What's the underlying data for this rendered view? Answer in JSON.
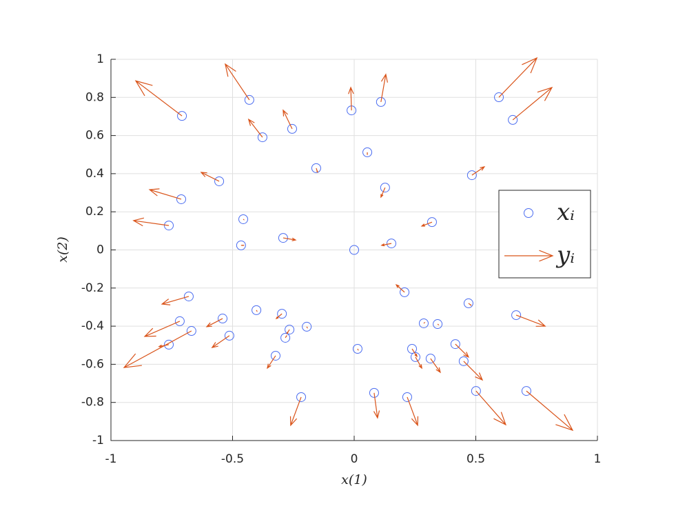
{
  "chart_data": {
    "type": "quiver",
    "xlabel": "x(1)",
    "ylabel": "x(2)",
    "xlim": [
      -1,
      1
    ],
    "ylim": [
      -1,
      1
    ],
    "xticks": [
      -1,
      -0.5,
      0,
      0.5,
      1
    ],
    "yticks": [
      -1,
      -0.8,
      -0.6,
      -0.4,
      -0.2,
      0,
      0.2,
      0.4,
      0.6,
      0.8,
      1
    ],
    "grid": true,
    "legend": "east",
    "point_name": "xᵢ",
    "point_color": "#4a6cf0",
    "arrow_name": "yᵢ",
    "arrow_color": "#d95319",
    "x": [
      -0.708,
      -0.431,
      -0.377,
      -0.255,
      -0.011,
      0.11,
      0.595,
      0.652,
      0.054,
      -0.156,
      -0.555,
      -0.711,
      -0.762,
      -0.456,
      -0.465,
      -0.292,
      0,
      0.127,
      0.484,
      0.32,
      0.153,
      0.207,
      -0.68,
      -0.717,
      -0.669,
      -0.762,
      -0.541,
      -0.513,
      -0.402,
      -0.297,
      -0.266,
      -0.283,
      -0.195,
      -0.323,
      -0.218,
      0.014,
      0.082,
      0.218,
      0.238,
      0.252,
      0.286,
      0.343,
      0.314,
      0.416,
      0.47,
      0.45,
      0.666,
      0.501,
      0.708
    ],
    "y": [
      0.703,
      0.787,
      0.591,
      0.635,
      0.732,
      0.776,
      0.801,
      0.682,
      0.512,
      0.429,
      0.36,
      0.266,
      0.128,
      0.161,
      0.024,
      0.063,
      0,
      0.327,
      0.392,
      0.146,
      0.034,
      -0.222,
      -0.244,
      -0.374,
      -0.425,
      -0.497,
      -0.36,
      -0.45,
      -0.316,
      -0.335,
      -0.418,
      -0.461,
      -0.403,
      -0.555,
      -0.772,
      -0.519,
      -0.75,
      -0.772,
      -0.519,
      -0.562,
      -0.385,
      -0.389,
      -0.57,
      -0.494,
      -0.28,
      -0.584,
      -0.342,
      -0.74,
      -0.74
    ],
    "u": [
      -0.19,
      -0.099,
      -0.057,
      -0.037,
      -0.003,
      0.02,
      0.156,
      0.161,
      0,
      0.005,
      -0.074,
      -0.13,
      -0.145,
      0.002,
      0.01,
      0.051,
      0,
      -0.017,
      0.051,
      -0.042,
      -0.04,
      -0.034,
      -0.11,
      -0.144,
      -0.277,
      -0.04,
      -0.065,
      -0.071,
      0.002,
      -0.023,
      -0.01,
      0.005,
      0.002,
      -0.034,
      -0.043,
      0.002,
      0.014,
      0.043,
      0.02,
      0.026,
      0.003,
      0.003,
      0.04,
      0.054,
      0.01,
      0.077,
      0.119,
      0.122,
      0.19
    ],
    "v": [
      0.184,
      0.188,
      0.094,
      0.098,
      0.12,
      0.145,
      0.206,
      0.17,
      -0.01,
      -0.02,
      0.047,
      0.05,
      0.026,
      -0.002,
      0,
      -0.011,
      0,
      -0.05,
      0.044,
      -0.021,
      -0.01,
      0.039,
      -0.04,
      -0.08,
      -0.192,
      -0.01,
      -0.043,
      -0.062,
      -0.005,
      -0.025,
      -0.02,
      0.01,
      -0.005,
      -0.065,
      -0.148,
      -0.005,
      -0.131,
      -0.148,
      -0.04,
      -0.058,
      0.003,
      -0.003,
      -0.072,
      -0.068,
      -0.01,
      -0.098,
      -0.058,
      -0.177,
      -0.206
    ]
  }
}
